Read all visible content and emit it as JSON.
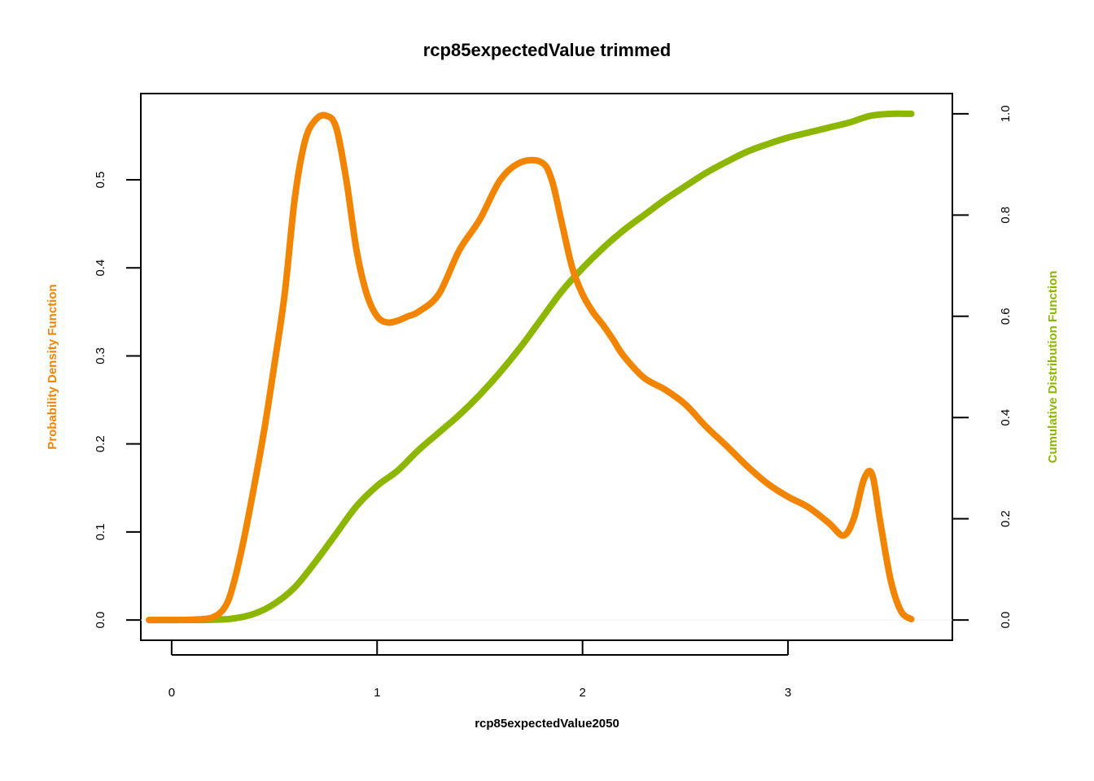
{
  "chart_data": {
    "type": "line",
    "title": "rcp85expectedValue trimmed",
    "xlabel": "rcp85expectedValue2050",
    "ylabel_left": "Probability Density Function",
    "ylabel_right": "Cumulative Distribution Function",
    "xlim": [
      -0.15,
      3.8
    ],
    "ylim_left": [
      -0.023,
      0.598
    ],
    "ylim_right": [
      -0.04,
      1.04
    ],
    "x_ticks": [
      0,
      1,
      2,
      3
    ],
    "x_tick_labels": [
      "0",
      "1",
      "2",
      "3"
    ],
    "y_left_ticks": [
      0.0,
      0.1,
      0.2,
      0.3,
      0.4,
      0.5
    ],
    "y_left_tick_labels": [
      "0.0",
      "0.1",
      "0.2",
      "0.3",
      "0.4",
      "0.5"
    ],
    "y_right_ticks": [
      0.0,
      0.2,
      0.4,
      0.6,
      0.8,
      1.0
    ],
    "y_right_tick_labels": [
      "0.0",
      "0.2",
      "0.4",
      "0.6",
      "0.8",
      "1.0"
    ],
    "grid": false,
    "series": [
      {
        "axis": "left",
        "color": "#f28500",
        "x": [
          -0.11,
          0.0,
          0.1,
          0.2,
          0.26,
          0.3,
          0.35,
          0.4,
          0.45,
          0.5,
          0.55,
          0.6,
          0.65,
          0.7,
          0.75,
          0.8,
          0.85,
          0.9,
          0.95,
          1.0,
          1.05,
          1.1,
          1.15,
          1.2,
          1.3,
          1.4,
          1.5,
          1.6,
          1.7,
          1.8,
          1.85,
          1.9,
          1.95,
          2.0,
          2.05,
          2.1,
          2.15,
          2.2,
          2.3,
          2.4,
          2.5,
          2.6,
          2.7,
          2.8,
          2.9,
          3.0,
          3.1,
          3.2,
          3.27,
          3.32,
          3.37,
          3.41,
          3.45,
          3.5,
          3.55,
          3.6
        ],
        "y": [
          0.0,
          0.0,
          0.0004,
          0.003,
          0.015,
          0.04,
          0.09,
          0.15,
          0.215,
          0.29,
          0.37,
          0.48,
          0.545,
          0.568,
          0.573,
          0.56,
          0.5,
          0.42,
          0.37,
          0.345,
          0.338,
          0.34,
          0.345,
          0.35,
          0.37,
          0.42,
          0.455,
          0.5,
          0.52,
          0.52,
          0.5,
          0.45,
          0.4,
          0.37,
          0.35,
          0.335,
          0.318,
          0.3,
          0.275,
          0.262,
          0.245,
          0.22,
          0.198,
          0.175,
          0.155,
          0.14,
          0.128,
          0.11,
          0.096,
          0.115,
          0.16,
          0.165,
          0.11,
          0.045,
          0.01,
          0.001
        ]
      },
      {
        "axis": "right",
        "color": "#8db600",
        "x": [
          -0.11,
          0.0,
          0.1,
          0.2,
          0.3,
          0.4,
          0.5,
          0.6,
          0.7,
          0.8,
          0.9,
          1.0,
          1.1,
          1.2,
          1.3,
          1.4,
          1.5,
          1.6,
          1.7,
          1.8,
          1.9,
          2.0,
          2.1,
          2.2,
          2.3,
          2.4,
          2.5,
          2.6,
          2.7,
          2.8,
          2.9,
          3.0,
          3.1,
          3.2,
          3.3,
          3.4,
          3.5,
          3.6
        ],
        "y": [
          0.0,
          0.0,
          0.0,
          0.0005,
          0.003,
          0.012,
          0.032,
          0.065,
          0.115,
          0.17,
          0.225,
          0.265,
          0.295,
          0.335,
          0.37,
          0.405,
          0.445,
          0.49,
          0.54,
          0.595,
          0.65,
          0.695,
          0.735,
          0.77,
          0.8,
          0.83,
          0.857,
          0.883,
          0.905,
          0.925,
          0.94,
          0.953,
          0.963,
          0.973,
          0.983,
          0.996,
          1.0,
          1.0
        ]
      }
    ]
  }
}
